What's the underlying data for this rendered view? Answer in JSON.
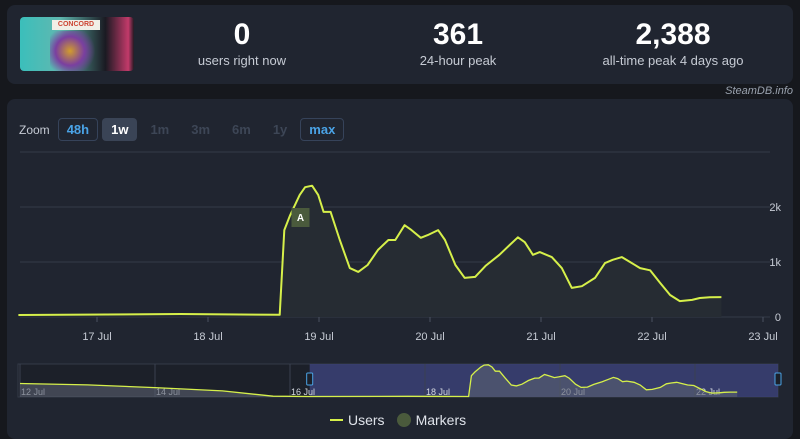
{
  "header": {
    "game_logo_text": "CONCORD",
    "stats": [
      {
        "value": "0",
        "label": "users right now"
      },
      {
        "value": "361",
        "label": "24-hour peak"
      },
      {
        "value": "2,388",
        "label": "all-time peak 4 days ago"
      }
    ],
    "credit": "SteamDB.info"
  },
  "zoom": {
    "label": "Zoom",
    "buttons": [
      {
        "label": "48h",
        "state": "enabled"
      },
      {
        "label": "1w",
        "state": "selected"
      },
      {
        "label": "1m",
        "state": "disabled"
      },
      {
        "label": "3m",
        "state": "disabled"
      },
      {
        "label": "6m",
        "state": "disabled"
      },
      {
        "label": "1y",
        "state": "disabled"
      },
      {
        "label": "max",
        "state": "enabled"
      }
    ]
  },
  "legend": {
    "users": "Users",
    "markers": "Markers"
  },
  "colors": {
    "line": "#d6f04a",
    "marker": "#4a5a3c",
    "navigator_selection": "#3b4277",
    "accent": "#4aa3e6"
  },
  "chart_data": {
    "type": "line",
    "xlim": [
      "16 Jul 07:00",
      "23 Jul 01:30"
    ],
    "ylim": [
      0,
      3000
    ],
    "grid": true,
    "x_ticks": [
      "17 Jul",
      "18 Jul",
      "19 Jul",
      "20 Jul",
      "21 Jul",
      "22 Jul",
      "23 Jul"
    ],
    "y_ticks": [
      "0",
      "1k",
      "2k"
    ],
    "legend_position": "bottom",
    "markers": [
      {
        "label": "A",
        "x": "18 Jul 20:00"
      }
    ],
    "series": [
      {
        "name": "Users",
        "points": [
          [
            "16 Jul 07:00",
            36
          ],
          [
            "17 Jul 18:00",
            55
          ],
          [
            "18 Jul 15:30",
            40
          ],
          [
            "18 Jul 16:30",
            1580
          ],
          [
            "18 Jul 17:45",
            1850
          ],
          [
            "18 Jul 19:50",
            2220
          ],
          [
            "18 Jul 21:00",
            2360
          ],
          [
            "18 Jul 22:30",
            2388
          ],
          [
            "18 Jul 23:50",
            2220
          ],
          [
            "19 Jul 01:00",
            1910
          ],
          [
            "19 Jul 02:30",
            1910
          ],
          [
            "19 Jul 04:30",
            1400
          ],
          [
            "19 Jul 06:40",
            890
          ],
          [
            "19 Jul 08:30",
            820
          ],
          [
            "19 Jul 10:30",
            945
          ],
          [
            "19 Jul 12:45",
            1220
          ],
          [
            "19 Jul 15:00",
            1400
          ],
          [
            "19 Jul 16:30",
            1400
          ],
          [
            "19 Jul 18:30",
            1670
          ],
          [
            "19 Jul 20:00",
            1580
          ],
          [
            "19 Jul 22:00",
            1440
          ],
          [
            "19 Jul 23:30",
            1490
          ],
          [
            "20 Jul 01:45",
            1580
          ],
          [
            "20 Jul 03:15",
            1400
          ],
          [
            "20 Jul 05:30",
            945
          ],
          [
            "20 Jul 07:30",
            710
          ],
          [
            "20 Jul 09:45",
            730
          ],
          [
            "20 Jul 12:00",
            930
          ],
          [
            "20 Jul 15:00",
            1130
          ],
          [
            "20 Jul 17:15",
            1310
          ],
          [
            "20 Jul 19:00",
            1450
          ],
          [
            "20 Jul 20:30",
            1360
          ],
          [
            "20 Jul 22:15",
            1130
          ],
          [
            "20 Jul 23:45",
            1180
          ],
          [
            "21 Jul 02:20",
            1090
          ],
          [
            "21 Jul 04:30",
            890
          ],
          [
            "21 Jul 06:40",
            530
          ],
          [
            "21 Jul 08:50",
            560
          ],
          [
            "21 Jul 11:40",
            710
          ],
          [
            "21 Jul 13:50",
            980
          ],
          [
            "21 Jul 15:30",
            1040
          ],
          [
            "21 Jul 17:30",
            1090
          ],
          [
            "21 Jul 19:15",
            1000
          ],
          [
            "21 Jul 21:25",
            890
          ],
          [
            "21 Jul 23:35",
            850
          ],
          [
            "22 Jul 01:45",
            620
          ],
          [
            "22 Jul 03:55",
            400
          ],
          [
            "22 Jul 06:00",
            290
          ],
          [
            "22 Jul 08:40",
            310
          ],
          [
            "22 Jul 10:20",
            345
          ],
          [
            "22 Jul 12:30",
            360
          ],
          [
            "22 Jul 15:00",
            361
          ]
        ]
      }
    ],
    "navigator": {
      "x_ticks": [
        "12 Jul",
        "14 Jul",
        "16 Jul",
        "18 Jul",
        "20 Jul",
        "22 Jul"
      ],
      "selection": [
        "16 Jul 07:00",
        "23 Jul 01:30"
      ],
      "earlier_points": [
        [
          "12 Jul 00:00",
          1000
        ],
        [
          "13 Jul 00:00",
          900
        ],
        [
          "14 Jul 00:00",
          700
        ],
        [
          "15 Jul 00:00",
          450
        ],
        [
          "15 Jul 18:00",
          60
        ],
        [
          "16 Jul 07:00",
          36
        ]
      ]
    }
  }
}
